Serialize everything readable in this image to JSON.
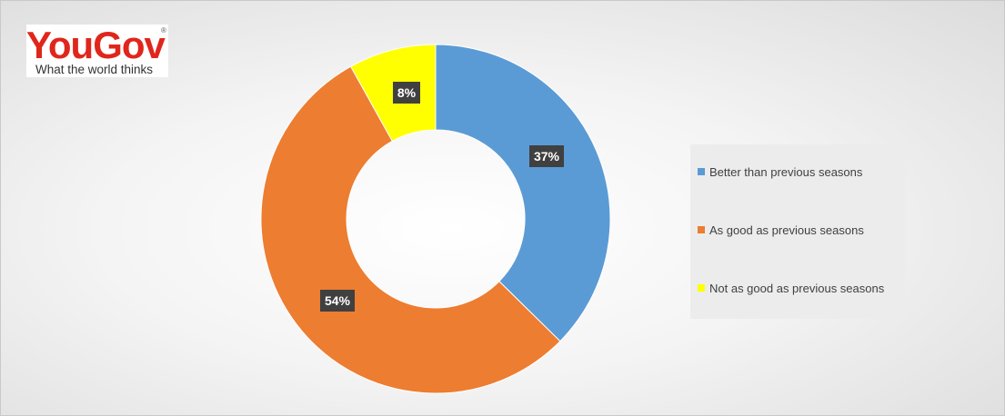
{
  "logo": {
    "word": "YouGov",
    "registered": "®",
    "tagline": "What the world thinks"
  },
  "chart_data": {
    "type": "pie",
    "variant": "doughnut",
    "title": "",
    "categories": [
      "Better than previous seasons",
      "As good as previous seasons",
      "Not as good as previous seasons"
    ],
    "values": [
      37,
      54,
      8
    ],
    "labels": [
      "37%",
      "54%",
      "8%"
    ],
    "colors": [
      "#5b9bd5",
      "#ed7d31",
      "#ffff00"
    ],
    "legend_position": "right"
  }
}
